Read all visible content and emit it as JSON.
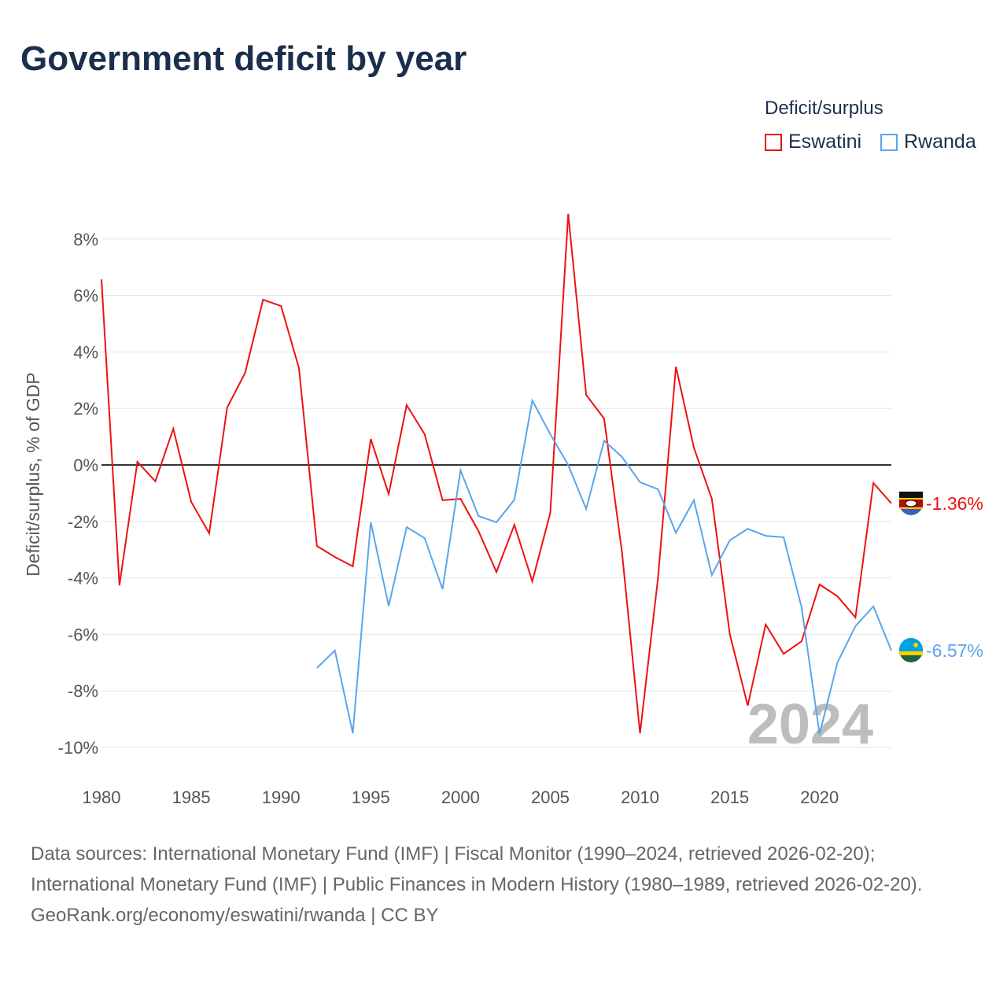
{
  "chart_data": {
    "type": "line",
    "title": "Government deficit by year",
    "xlabel": "",
    "ylabel": "Deficit/surplus, % of GDP",
    "legend_title": "Deficit/surplus",
    "legend_position": "top-right",
    "xlim": [
      1980,
      2024
    ],
    "ylim": [
      -10,
      8
    ],
    "x_ticks": [
      "1980",
      "1985",
      "1990",
      "1995",
      "2000",
      "2005",
      "2010",
      "2015",
      "2020"
    ],
    "y_ticks": [
      "8%",
      "6%",
      "4%",
      "2%",
      "0%",
      "-2%",
      "-4%",
      "-6%",
      "-8%",
      "-10%"
    ],
    "y_tick_values": [
      8,
      6,
      4,
      2,
      0,
      -2,
      -4,
      -6,
      -8,
      -10
    ],
    "x_tick_values": [
      1980,
      1985,
      1990,
      1995,
      2000,
      2005,
      2010,
      2015,
      2020
    ],
    "year_watermark": "2024",
    "series": [
      {
        "name": "Eswatini",
        "color": "#ee1111",
        "end_label": "-1.36%",
        "start_year": 1980,
        "values": [
          6.57,
          -4.26,
          0.11,
          -0.58,
          1.28,
          -1.31,
          -2.42,
          2.03,
          3.26,
          5.85,
          5.63,
          3.43,
          -2.87,
          -3.26,
          -3.59,
          0.92,
          -1.03,
          2.12,
          1.09,
          -1.25,
          -1.2,
          -2.34,
          -3.79,
          -2.12,
          -4.12,
          -1.7,
          8.89,
          2.48,
          1.64,
          -3.12,
          -9.5,
          -4.01,
          3.48,
          0.61,
          -1.2,
          -5.99,
          -8.52,
          -5.65,
          -6.69,
          -6.24,
          -4.23,
          -4.65,
          -5.4,
          -0.64,
          -1.36
        ]
      },
      {
        "name": "Rwanda",
        "color": "#5aa5ee",
        "end_label": "-6.57%",
        "start_year": 1992,
        "values": [
          -7.19,
          -6.57,
          -9.5,
          -2.03,
          -4.99,
          -2.2,
          -2.59,
          -4.4,
          -0.19,
          -1.81,
          -2.03,
          -1.23,
          2.28,
          1.09,
          0,
          -1.56,
          0.86,
          0.28,
          -0.61,
          -0.86,
          -2.4,
          -1.25,
          -3.9,
          -2.67,
          -2.26,
          -2.51,
          -2.56,
          -5.04,
          -9.53,
          -6.99,
          -5.71,
          -5.01,
          -6.57
        ]
      }
    ]
  },
  "footer": {
    "sources": "Data sources: International Monetary Fund (IMF) | Fiscal Monitor (1990–2024, retrieved 2026-02-20); International Monetary Fund (IMF) | Public Finances in Modern History (1980–1989, retrieved 2026-02-20).",
    "credit": "GeoRank.org/economy/eswatini/rwanda | CC BY"
  }
}
